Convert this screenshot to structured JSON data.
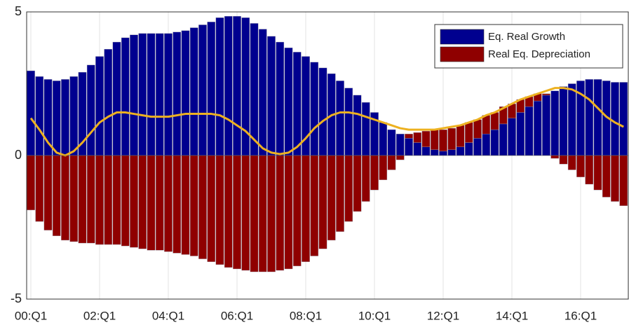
{
  "chart_data": {
    "type": "bar",
    "stacked": true,
    "legend": "upper right",
    "grid": "x",
    "ylim": [
      -5,
      5
    ],
    "yticks": [
      -5,
      0,
      5
    ],
    "categories": [
      "00:Q1",
      null,
      null,
      null,
      null,
      null,
      null,
      null,
      "02:Q1",
      null,
      null,
      null,
      null,
      null,
      null,
      null,
      "04:Q1",
      null,
      null,
      null,
      null,
      null,
      null,
      null,
      "06:Q1",
      null,
      null,
      null,
      null,
      null,
      null,
      null,
      "08:Q1",
      null,
      null,
      null,
      null,
      null,
      null,
      null,
      "10:Q1",
      null,
      null,
      null,
      null,
      null,
      null,
      null,
      "12:Q1",
      null,
      null,
      null,
      null,
      null,
      null,
      null,
      "14:Q1",
      null,
      null,
      null,
      null,
      null,
      null,
      null,
      "16:Q1",
      null,
      null,
      null,
      null,
      null
    ],
    "series": [
      {
        "name": "Eq. Real Growth",
        "color": "#00008f",
        "values": [
          2.95,
          2.75,
          2.65,
          2.6,
          2.65,
          2.75,
          2.9,
          3.15,
          3.45,
          3.7,
          3.95,
          4.1,
          4.2,
          4.25,
          4.25,
          4.25,
          4.25,
          4.3,
          4.35,
          4.45,
          4.55,
          4.65,
          4.8,
          4.85,
          4.85,
          4.8,
          4.6,
          4.4,
          4.15,
          3.95,
          3.75,
          3.6,
          3.45,
          3.25,
          3.05,
          2.85,
          2.6,
          2.35,
          2.1,
          1.85,
          1.5,
          1.15,
          0.9,
          0.75,
          0.6,
          0.45,
          0.3,
          0.2,
          0.15,
          0.2,
          0.3,
          0.45,
          0.6,
          0.75,
          0.9,
          1.1,
          1.3,
          1.5,
          1.7,
          1.9,
          2.1,
          2.25,
          2.4,
          2.5,
          2.6,
          2.65,
          2.65,
          2.6,
          2.55,
          2.55
        ]
      },
      {
        "name": "Real Eq. Depreciation",
        "color": "#8f0000",
        "values": [
          -1.9,
          -2.3,
          -2.6,
          -2.8,
          -2.95,
          -3.0,
          -3.05,
          -3.05,
          -3.1,
          -3.1,
          -3.1,
          -3.15,
          -3.2,
          -3.25,
          -3.3,
          -3.3,
          -3.35,
          -3.4,
          -3.45,
          -3.5,
          -3.6,
          -3.7,
          -3.8,
          -3.9,
          -3.95,
          -4.0,
          -4.05,
          -4.05,
          -4.05,
          -4.0,
          -3.95,
          -3.85,
          -3.7,
          -3.5,
          -3.25,
          -2.95,
          -2.65,
          -2.3,
          -1.95,
          -1.6,
          -1.2,
          -0.85,
          -0.5,
          -0.15,
          0.15,
          0.35,
          0.55,
          0.7,
          0.75,
          0.75,
          0.75,
          0.7,
          0.65,
          0.65,
          0.6,
          0.6,
          0.5,
          0.45,
          0.35,
          0.25,
          0.05,
          -0.1,
          -0.3,
          -0.5,
          -0.75,
          -1.0,
          -1.2,
          -1.45,
          -1.6,
          -1.75
        ]
      },
      {
        "type": "line",
        "color": "#edb120",
        "values": [
          1.3,
          0.9,
          0.45,
          0.1,
          0.0,
          0.15,
          0.45,
          0.8,
          1.15,
          1.35,
          1.5,
          1.5,
          1.45,
          1.4,
          1.35,
          1.35,
          1.35,
          1.4,
          1.45,
          1.45,
          1.45,
          1.45,
          1.4,
          1.25,
          1.05,
          0.85,
          0.55,
          0.25,
          0.1,
          0.05,
          0.1,
          0.3,
          0.6,
          0.95,
          1.2,
          1.4,
          1.5,
          1.5,
          1.45,
          1.35,
          1.25,
          1.15,
          1.05,
          0.95,
          0.9,
          0.9,
          0.9,
          0.9,
          0.95,
          1.0,
          1.05,
          1.15,
          1.25,
          1.4,
          1.5,
          1.65,
          1.8,
          1.95,
          2.05,
          2.15,
          2.25,
          2.35,
          2.35,
          2.3,
          2.15,
          1.95,
          1.65,
          1.35,
          1.15,
          1.0
        ]
      }
    ]
  }
}
